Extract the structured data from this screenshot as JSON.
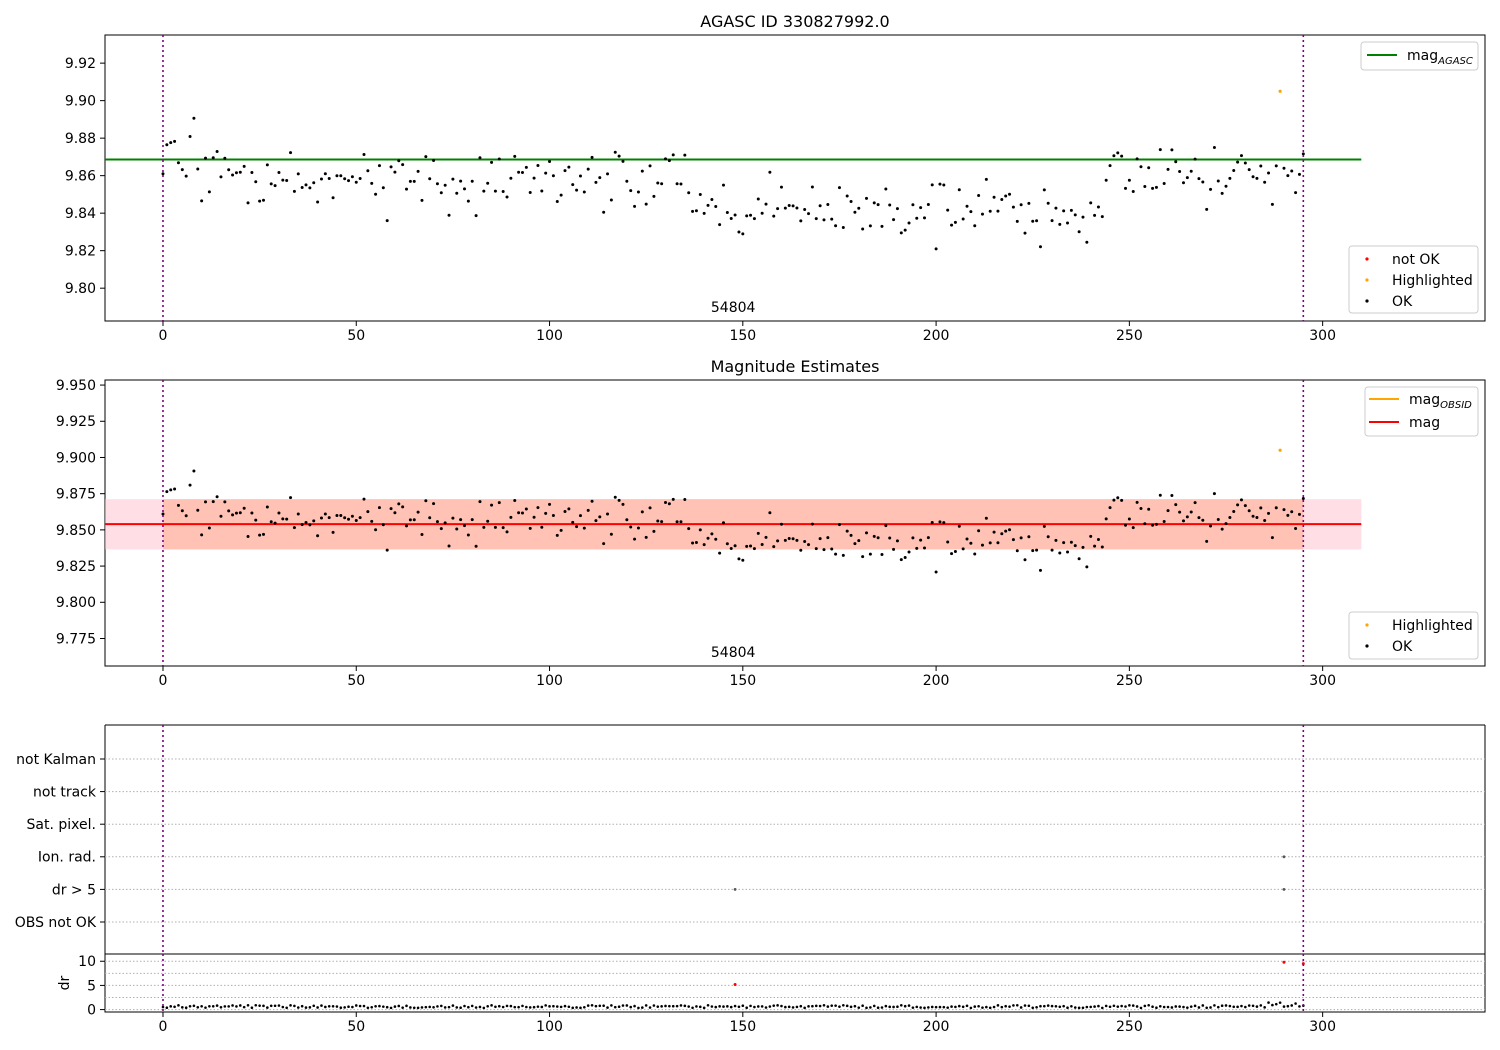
{
  "figure_title": "AGASC ID 330827992.0",
  "chart_data": [
    {
      "id": "agasc",
      "type": "scatter",
      "title": "AGASC ID 330827992.0",
      "xlabel": "",
      "ylabel": "",
      "xlim": [
        -15,
        342
      ],
      "ylim": [
        9.7825,
        9.935
      ],
      "xticks": [
        0,
        50,
        100,
        150,
        200,
        250,
        300
      ],
      "yticks": [
        9.8,
        9.82,
        9.84,
        9.86,
        9.88,
        9.9,
        9.92
      ],
      "ytick_labels": [
        "9.80",
        "9.82",
        "9.84",
        "9.86",
        "9.88",
        "9.90",
        "9.92"
      ],
      "vlines": [
        0,
        295
      ],
      "annotation": {
        "text": "54804",
        "x": 147.5
      },
      "hline": {
        "name": "mag_AGASC",
        "value": 9.8686,
        "x_range": [
          -15,
          310
        ],
        "color": "#008000"
      },
      "legend_lines": {
        "position": "top-right",
        "entries": [
          {
            "label": "mag",
            "sub": "AGASC",
            "color": "#008000"
          }
        ]
      },
      "legend_points": {
        "position": "bottom-right",
        "entries": [
          {
            "label": "not OK",
            "color": "#ff0000"
          },
          {
            "label": "Highlighted",
            "color": "#ffa500"
          },
          {
            "label": "OK",
            "color": "#000000"
          }
        ]
      },
      "highlighted_points": [
        {
          "x": 289,
          "y": 9.905
        }
      ]
    },
    {
      "id": "estimates",
      "type": "scatter",
      "title": "Magnitude Estimates",
      "xlabel": "",
      "ylabel": "",
      "xlim": [
        -15,
        342
      ],
      "ylim": [
        9.756,
        9.9535
      ],
      "xticks": [
        0,
        50,
        100,
        150,
        200,
        250,
        300
      ],
      "yticks": [
        9.775,
        9.8,
        9.825,
        9.85,
        9.875,
        9.9,
        9.925,
        9.95
      ],
      "ytick_labels": [
        "9.775",
        "9.800",
        "9.825",
        "9.850",
        "9.875",
        "9.900",
        "9.925",
        "9.950"
      ],
      "vlines": [
        0,
        295
      ],
      "annotation": {
        "text": "54804",
        "x": 147.5
      },
      "hline": {
        "name": "mag",
        "value": 9.854,
        "x_range": [
          -15,
          310
        ],
        "color": "#ff0000"
      },
      "band_outer": {
        "lo": 9.8365,
        "hi": 9.8712,
        "color": "#ffc0cb"
      },
      "band_inner": {
        "lo": 9.8365,
        "hi": 9.8712,
        "color": "#ffa07a"
      },
      "legend_lines": {
        "position": "top-right",
        "entries": [
          {
            "label": "mag",
            "sub": "OBSID",
            "color": "#ffa500"
          },
          {
            "label": "mag",
            "sub": "",
            "color": "#ff0000"
          }
        ]
      },
      "legend_points": {
        "position": "bottom-right",
        "entries": [
          {
            "label": "Highlighted",
            "color": "#ffa500"
          },
          {
            "label": "OK",
            "color": "#000000"
          }
        ]
      },
      "highlighted_points": [
        {
          "x": 289,
          "y": 9.905
        }
      ]
    },
    {
      "id": "flags",
      "type": "scatter",
      "title": "",
      "xlim": [
        -15,
        342
      ],
      "categories": [
        "not Kalman",
        "not track",
        "Sat. pixel.",
        "Ion. rad.",
        "dr > 5",
        "OBS not OK"
      ],
      "vlines": [
        0,
        295
      ],
      "points": [
        {
          "category": "Ion. rad.",
          "x": 290
        },
        {
          "category": "dr > 5",
          "x": 148
        },
        {
          "category": "dr > 5",
          "x": 290
        }
      ]
    },
    {
      "id": "dr",
      "type": "scatter",
      "title": "",
      "ylabel": "dr",
      "xlim": [
        -15,
        342
      ],
      "ylim": [
        -0.5,
        11.5
      ],
      "xticks": [
        0,
        50,
        100,
        150,
        200,
        250,
        300
      ],
      "yticks": [
        0,
        5,
        10
      ],
      "vlines": [
        0,
        295
      ],
      "red_points": [
        {
          "x": 148,
          "y": 5.2
        },
        {
          "x": 290,
          "y": 9.8
        },
        {
          "x": 295,
          "y": 9.5
        }
      ]
    }
  ]
}
